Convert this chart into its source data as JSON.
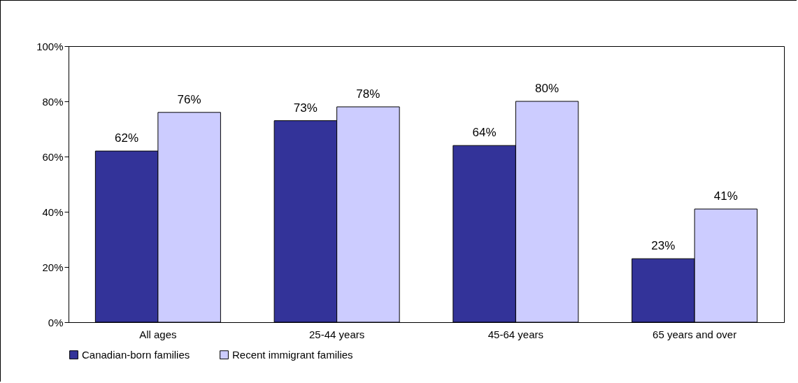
{
  "chart_data": {
    "type": "bar",
    "categories": [
      "All ages",
      "25-44 years",
      "45-64 years",
      "65 years and over"
    ],
    "series": [
      {
        "name": "Canadian-born families",
        "color": "#333399",
        "values": [
          62,
          73,
          64,
          23
        ],
        "value_labels": [
          "62%",
          "73%",
          "64%",
          "23%"
        ]
      },
      {
        "name": "Recent immigrant families",
        "color": "#ccccff",
        "values": [
          76,
          78,
          80,
          41
        ],
        "value_labels": [
          "76%",
          "78%",
          "80%",
          "41%"
        ]
      }
    ],
    "ylim": [
      0,
      100
    ],
    "yticks": [
      {
        "value": 0,
        "label": "0%"
      },
      {
        "value": 20,
        "label": "20%"
      },
      {
        "value": 40,
        "label": "40%"
      },
      {
        "value": 60,
        "label": "60%"
      },
      {
        "value": 80,
        "label": "80%"
      },
      {
        "value": 100,
        "label": "100%"
      }
    ],
    "grid": false,
    "legend": "bottom"
  }
}
